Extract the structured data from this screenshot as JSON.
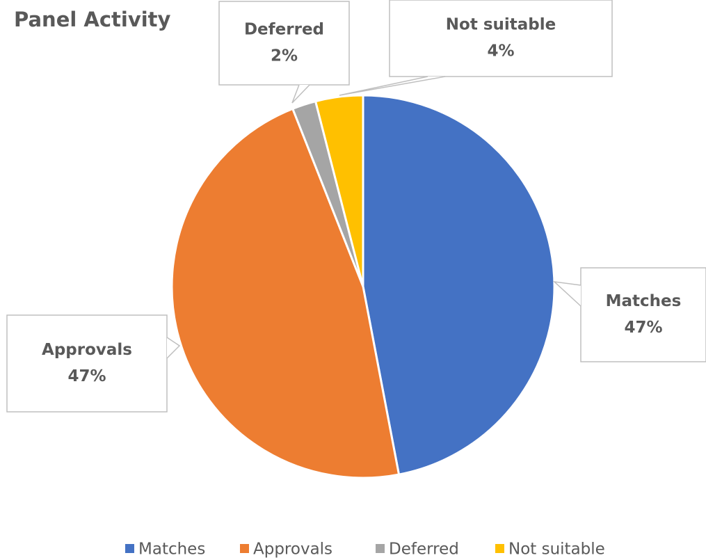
{
  "chart_data": {
    "type": "pie",
    "title": "Panel Activity",
    "categories": [
      "Matches",
      "Approvals",
      "Deferred",
      "Not suitable"
    ],
    "values": [
      47,
      47,
      2,
      4
    ],
    "value_labels": [
      "47%",
      "47%",
      "2%",
      "4%"
    ],
    "colors": [
      "#4472c4",
      "#ed7d31",
      "#a5a5a5",
      "#ffc000"
    ],
    "legend": "bottom"
  }
}
